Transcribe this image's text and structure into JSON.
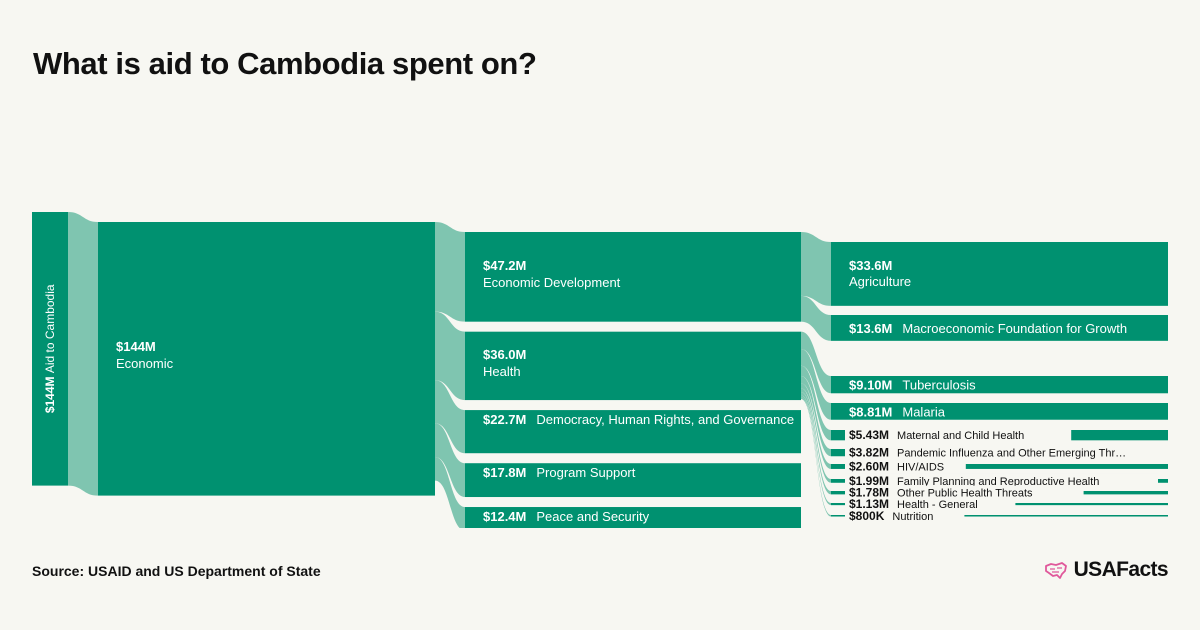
{
  "title": "What is aid to Cambodia spent on?",
  "source": "Source: USAID and US Department of State",
  "logo": {
    "text": "USAFacts",
    "icon": "us-map-icon",
    "icon_color": "#e0589b"
  },
  "colors": {
    "node": "#009170",
    "link": "#7fc5b0",
    "node_text": "#ffffff",
    "background": "#f7f7f2"
  },
  "chart_data": {
    "type": "sankey",
    "unit": "USD",
    "root": {
      "name": "Aid to Cambodia",
      "value_label": "$144M",
      "value": 144
    },
    "levels": [
      {
        "nodes": [
          {
            "name": "Economic",
            "value_label": "$144M",
            "value": 144
          }
        ]
      },
      {
        "nodes": [
          {
            "name": "Economic Development",
            "value_label": "$47.2M",
            "value": 47.2
          },
          {
            "name": "Health",
            "value_label": "$36.0M",
            "value": 36.0
          },
          {
            "name": "Democracy, Human Rights, and Governance",
            "value_label": "$22.7M",
            "value": 22.7
          },
          {
            "name": "Program Support",
            "value_label": "$17.8M",
            "value": 17.8
          },
          {
            "name": "Peace and Security",
            "value_label": "$12.4M",
            "value": 12.4
          }
        ]
      },
      {
        "nodes": [
          {
            "name": "Agriculture",
            "value_label": "$33.6M",
            "value": 33.6,
            "parent": "Economic Development"
          },
          {
            "name": "Macroeconomic Foundation for Growth",
            "value_label": "$13.6M",
            "value": 13.6,
            "parent": "Economic Development"
          },
          {
            "name": "Tuberculosis",
            "value_label": "$9.10M",
            "value": 9.1,
            "parent": "Health"
          },
          {
            "name": "Malaria",
            "value_label": "$8.81M",
            "value": 8.81,
            "parent": "Health"
          },
          {
            "name": "Maternal and Child Health",
            "value_label": "$5.43M",
            "value": 5.43,
            "parent": "Health"
          },
          {
            "name": "Pandemic Influenza and Other Emerging Thr…",
            "value_label": "$3.82M",
            "value": 3.82,
            "parent": "Health"
          },
          {
            "name": "HIV/AIDS",
            "value_label": "$2.60M",
            "value": 2.6,
            "parent": "Health"
          },
          {
            "name": "Family Planning and Reproductive Health",
            "value_label": "$1.99M",
            "value": 1.99,
            "parent": "Health"
          },
          {
            "name": "Other Public Health Threats",
            "value_label": "$1.78M",
            "value": 1.78,
            "parent": "Health"
          },
          {
            "name": "Health - General",
            "value_label": "$1.13M",
            "value": 1.13,
            "parent": "Health"
          },
          {
            "name": "Nutrition",
            "value_label": "$800K",
            "value": 0.8,
            "parent": "Health"
          }
        ]
      }
    ]
  }
}
